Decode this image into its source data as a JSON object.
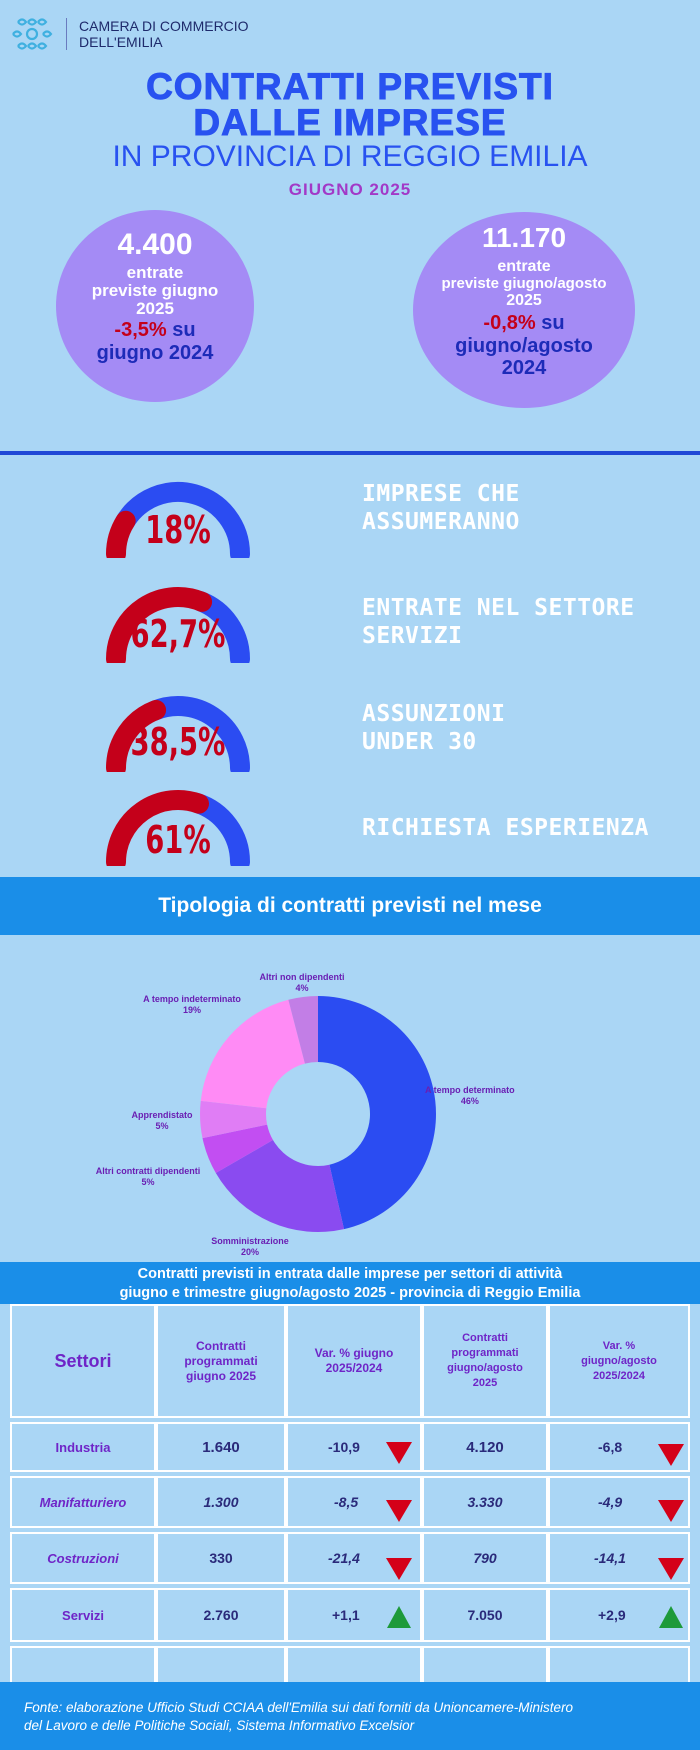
{
  "header": {
    "org_line1": "CAMERA DI COMMERCIO",
    "org_line2": "DELL'EMILIA"
  },
  "title": {
    "line1": "CONTRATTI PREVISTI",
    "line2": "DALLE IMPRESE",
    "line3": "IN PROVINCIA DI REGGIO EMILIA",
    "month": "GIUGNO  2025"
  },
  "bubbles": [
    {
      "value": "4.400",
      "label1": "entrate",
      "label2": "previste giugno",
      "label3": "2025",
      "variation": "-3,5%",
      "cmp1": "su",
      "cmp2": "giugno 2024"
    },
    {
      "value": "11.170",
      "label1": "entrate",
      "label2": "previste giugno/agosto",
      "label3": "2025",
      "variation": "-0,8%",
      "cmp1": "su",
      "cmp2": "giugno/agosto",
      "cmp3": "2024"
    }
  ],
  "gauges": [
    {
      "value_text": "18%",
      "fraction": 0.18,
      "label1": "IMPRESE CHE",
      "label2": "ASSUMERANNO"
    },
    {
      "value_text": "62,7%",
      "fraction": 0.627,
      "label1": "ENTRATE NEL SETTORE",
      "label2": "SERVIZI"
    },
    {
      "value_text": "38,5%",
      "fraction": 0.385,
      "label1": "ASSUNZIONI",
      "label2": "UNDER 30"
    },
    {
      "value_text": "61%",
      "fraction": 0.61,
      "label1": "RICHIESTA ESPERIENZA",
      "label2": ""
    }
  ],
  "colors": {
    "gauge_fill": "#c4001a",
    "gauge_rest": "#2b4cf2"
  },
  "band_title": "Tipologia di contratti previsti nel mese",
  "chart_data": {
    "type": "pie",
    "title": "",
    "slices": [
      {
        "name": "A tempo determinato",
        "value": 46,
        "label": "46%",
        "color": "#2b4cf2"
      },
      {
        "name": "Somministrazione",
        "value": 20,
        "label": "20%",
        "color": "#8a4bf0"
      },
      {
        "name": "Altri contratti dipendenti",
        "value": 5,
        "label": "5%",
        "color": "#c24ef2"
      },
      {
        "name": "Apprendistato",
        "value": 5,
        "label": "5%",
        "color": "#e07df5"
      },
      {
        "name": "A tempo indeterminato",
        "value": 19,
        "label": "19%",
        "color": "#ff8bf5"
      },
      {
        "name": "Altri non dipendenti",
        "value": 4,
        "label": "4%",
        "color": "#c27ee6"
      }
    ]
  },
  "table": {
    "title1": "Contratti previsti in entrata dalle imprese per settori di attività",
    "title2": "giugno e trimestre giugno/agosto 2025  -  provincia di Reggio Emilia",
    "headers": [
      "Settori",
      "Contratti programmati giugno 2025",
      "Var. % giugno 2025/2024",
      "Contratti programmati giugno/agosto 2025",
      "Var. % giugno/agosto 2025/2024"
    ],
    "rows": [
      {
        "sector": "Industria",
        "jun": "1.640",
        "var_jun": "-10,9",
        "trend_jun": "down",
        "tri": "4.120",
        "var_tri": "-6,8",
        "trend_tri": "down",
        "italic": false
      },
      {
        "sector": "Manifatturiero",
        "jun": "1.300",
        "var_jun": "-8,5",
        "trend_jun": "down",
        "tri": "3.330",
        "var_tri": "-4,9",
        "trend_tri": "down",
        "italic": true
      },
      {
        "sector": "Costruzioni",
        "jun": "330",
        "var_jun": "-21,4",
        "trend_jun": "down",
        "tri": "790",
        "var_tri": "-14,1",
        "trend_tri": "down",
        "italic": true
      },
      {
        "sector": "Servizi",
        "jun": "2.760",
        "var_jun": "+1,1",
        "trend_jun": "up",
        "tri": "7.050",
        "var_tri": "+2,9",
        "trend_tri": "up",
        "italic": false
      }
    ]
  },
  "footer": {
    "line1": "Fonte: elaborazione Ufficio Studi CCIAA dell'Emilia sui dati forniti da Unioncamere-Ministero",
    "line2": "del Lavoro e delle Politiche Sociali, Sistema Informativo Excelsior"
  }
}
